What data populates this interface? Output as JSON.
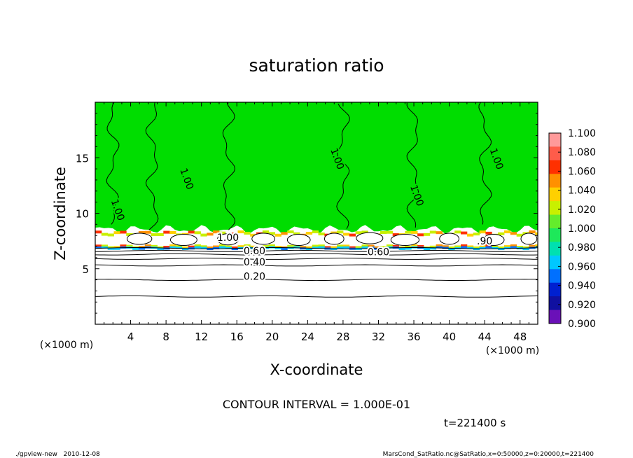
{
  "chart_data": {
    "type": "heatmap",
    "title": "saturation ratio",
    "xlabel": "X-coordinate",
    "ylabel": "Z-coordinate",
    "x_unit": "(×1000 m)",
    "y_unit": "(×1000 m)",
    "xlim": [
      0,
      50
    ],
    "ylim": [
      0,
      20
    ],
    "x_ticks": [
      4,
      8,
      12,
      16,
      20,
      24,
      28,
      32,
      36,
      40,
      44,
      48
    ],
    "y_ticks": [
      5,
      10,
      15
    ],
    "contour_interval": "CONTOUR INTERVAL = 1.000E-01",
    "time_label": "t=221400 s",
    "contour_labels": [
      {
        "text": "0.20",
        "x": 18,
        "z": 4.0
      },
      {
        "text": "0.40",
        "x": 18,
        "z": 5.3
      },
      {
        "text": "0.60",
        "x": 18,
        "z": 6.3
      },
      {
        "text": "0.60",
        "x": 32,
        "z": 6.2
      },
      {
        "text": "1.00",
        "x": 15,
        "z": 7.5
      },
      {
        "text": "1.00",
        "x": 2.2,
        "z": 10.2
      },
      {
        "text": "1.00",
        "x": 10,
        "z": 13.0
      },
      {
        "text": "1.00",
        "x": 27,
        "z": 14.8
      },
      {
        "text": "1.00",
        "x": 36,
        "z": 11.5
      },
      {
        "text": "1.00",
        "x": 45,
        "z": 14.8
      },
      {
        "text": ".90",
        "x": 44,
        "z": 7.2
      }
    ],
    "colorbar": {
      "levels": [
        "1.100",
        "1.080",
        "1.060",
        "1.040",
        "1.020",
        "1.000",
        "0.980",
        "0.960",
        "0.940",
        "0.920",
        "0.900"
      ],
      "colors": [
        "#ff9a9a",
        "#ff5c4a",
        "#ff3000",
        "#ff9000",
        "#ffd000",
        "#c8f000",
        "#64ec2c",
        "#1ee85a",
        "#00e0b0",
        "#00c8ff",
        "#0070ff",
        "#0020d0",
        "#1010a0",
        "#6a10b8"
      ]
    },
    "field_colors": {
      "saturated": "#00dd00",
      "subsaturated": "#ffffff",
      "cloud_edge": [
        "#ff3000",
        "#ff9000",
        "#ffd000",
        "#c8f000"
      ],
      "dry_edge": [
        "#0070ff",
        "#00c8ff"
      ]
    }
  },
  "footer": {
    "left": "./gpview-new   2010-12-08",
    "right": "MarsCond_SatRatio.nc@SatRatio,x=0:50000,z=0:20000,t=221400"
  }
}
